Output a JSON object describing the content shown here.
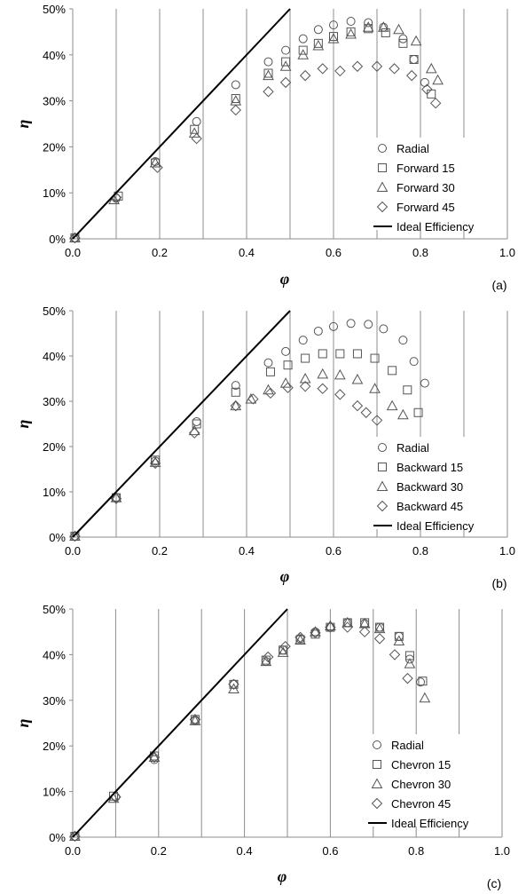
{
  "chart_data": [
    {
      "type": "scatter",
      "panel_label": "(a)",
      "xlabel": "φ",
      "ylabel": "η",
      "xlim": [
        0,
        1.0
      ],
      "ylim": [
        0,
        0.5
      ],
      "x_ticks": [
        "0.0",
        "0.2",
        "0.4",
        "0.6",
        "0.8",
        "1.0"
      ],
      "y_ticks": [
        "0%",
        "10%",
        "20%",
        "30%",
        "40%",
        "50%"
      ],
      "grid": "vertical every 0.1",
      "legend_position": "bottom-right",
      "series": [
        {
          "name": "Radial",
          "marker": "circle",
          "x": [
            0.005,
            0.1,
            0.19,
            0.285,
            0.375,
            0.45,
            0.49,
            0.53,
            0.565,
            0.6,
            0.64,
            0.68,
            0.715,
            0.76,
            0.785,
            0.81
          ],
          "y": [
            0.002,
            0.088,
            0.168,
            0.255,
            0.335,
            0.385,
            0.41,
            0.435,
            0.455,
            0.465,
            0.473,
            0.47,
            0.46,
            0.435,
            0.39,
            0.34
          ]
        },
        {
          "name": "Forward 15",
          "marker": "square",
          "x": [
            0.005,
            0.105,
            0.19,
            0.28,
            0.375,
            0.45,
            0.49,
            0.53,
            0.565,
            0.6,
            0.64,
            0.68,
            0.72,
            0.76,
            0.785,
            0.825
          ],
          "y": [
            0.002,
            0.093,
            0.165,
            0.238,
            0.305,
            0.36,
            0.385,
            0.41,
            0.425,
            0.44,
            0.45,
            0.457,
            0.448,
            0.425,
            0.39,
            0.315
          ]
        },
        {
          "name": "Forward 30",
          "marker": "triangle",
          "x": [
            0.005,
            0.095,
            0.19,
            0.28,
            0.375,
            0.45,
            0.49,
            0.53,
            0.565,
            0.6,
            0.64,
            0.68,
            0.715,
            0.75,
            0.79,
            0.825,
            0.84
          ],
          "y": [
            0.002,
            0.085,
            0.165,
            0.23,
            0.3,
            0.355,
            0.375,
            0.4,
            0.42,
            0.435,
            0.445,
            0.46,
            0.46,
            0.455,
            0.43,
            0.37,
            0.345
          ]
        },
        {
          "name": "Forward 45",
          "marker": "diamond",
          "x": [
            0.005,
            0.1,
            0.195,
            0.285,
            0.375,
            0.45,
            0.49,
            0.535,
            0.575,
            0.615,
            0.655,
            0.7,
            0.74,
            0.78,
            0.815,
            0.835
          ],
          "y": [
            0.002,
            0.09,
            0.155,
            0.218,
            0.28,
            0.32,
            0.34,
            0.355,
            0.37,
            0.365,
            0.375,
            0.375,
            0.37,
            0.355,
            0.325,
            0.295
          ]
        },
        {
          "name": "Ideal Efficiency",
          "marker": "line",
          "x": [
            0,
            0.5
          ],
          "y": [
            0,
            0.5
          ]
        }
      ]
    },
    {
      "type": "scatter",
      "panel_label": "(b)",
      "xlabel": "φ",
      "ylabel": "η",
      "xlim": [
        0,
        1.0
      ],
      "ylim": [
        0,
        0.5
      ],
      "x_ticks": [
        "0.0",
        "0.2",
        "0.4",
        "0.6",
        "0.8",
        "1.0"
      ],
      "y_ticks": [
        "0%",
        "10%",
        "20%",
        "30%",
        "40%",
        "50%"
      ],
      "grid": "vertical every 0.1",
      "legend_position": "bottom-right",
      "series": [
        {
          "name": "Radial",
          "marker": "circle",
          "x": [
            0.005,
            0.1,
            0.19,
            0.285,
            0.375,
            0.45,
            0.49,
            0.53,
            0.565,
            0.6,
            0.64,
            0.68,
            0.715,
            0.76,
            0.785,
            0.81
          ],
          "y": [
            0.002,
            0.088,
            0.168,
            0.255,
            0.335,
            0.385,
            0.41,
            0.435,
            0.455,
            0.465,
            0.472,
            0.47,
            0.46,
            0.435,
            0.388,
            0.34
          ]
        },
        {
          "name": "Backward 15",
          "marker": "square",
          "x": [
            0.005,
            0.1,
            0.19,
            0.285,
            0.375,
            0.455,
            0.495,
            0.535,
            0.575,
            0.615,
            0.655,
            0.695,
            0.735,
            0.77,
            0.795
          ],
          "y": [
            0.002,
            0.087,
            0.17,
            0.25,
            0.32,
            0.365,
            0.38,
            0.395,
            0.405,
            0.405,
            0.405,
            0.395,
            0.368,
            0.325,
            0.275
          ]
        },
        {
          "name": "Backward 30",
          "marker": "triangle",
          "x": [
            0.005,
            0.1,
            0.19,
            0.28,
            0.375,
            0.41,
            0.45,
            0.49,
            0.535,
            0.575,
            0.615,
            0.655,
            0.695,
            0.735,
            0.76
          ],
          "y": [
            0.002,
            0.087,
            0.165,
            0.235,
            0.29,
            0.305,
            0.325,
            0.34,
            0.35,
            0.36,
            0.358,
            0.348,
            0.328,
            0.29,
            0.27
          ]
        },
        {
          "name": "Backward 45",
          "marker": "diamond",
          "x": [
            0.005,
            0.1,
            0.19,
            0.28,
            0.375,
            0.415,
            0.455,
            0.495,
            0.535,
            0.575,
            0.615,
            0.655,
            0.675,
            0.7
          ],
          "y": [
            0.002,
            0.085,
            0.163,
            0.23,
            0.29,
            0.305,
            0.318,
            0.33,
            0.333,
            0.328,
            0.315,
            0.29,
            0.275,
            0.258
          ]
        },
        {
          "name": "Ideal Efficiency",
          "marker": "line",
          "x": [
            0,
            0.5
          ],
          "y": [
            0,
            0.5
          ]
        }
      ]
    },
    {
      "type": "scatter",
      "panel_label": "(c)",
      "xlabel": "φ",
      "ylabel": "η",
      "xlim": [
        0,
        1.0
      ],
      "ylim": [
        0,
        0.5
      ],
      "x_ticks": [
        "0.0",
        "0.2",
        "0.4",
        "0.6",
        "0.8",
        "1.0"
      ],
      "y_ticks": [
        "0%",
        "10%",
        "20%",
        "30%",
        "40%",
        "50%"
      ],
      "grid": "vertical every 0.1",
      "legend_position": "bottom-right",
      "series": [
        {
          "name": "Radial",
          "marker": "circle",
          "x": [
            0.005,
            0.1,
            0.19,
            0.285,
            0.375,
            0.45,
            0.49,
            0.53,
            0.565,
            0.6,
            0.64,
            0.68,
            0.715,
            0.76,
            0.785,
            0.81
          ],
          "y": [
            0.002,
            0.088,
            0.17,
            0.255,
            0.335,
            0.385,
            0.41,
            0.435,
            0.45,
            0.46,
            0.47,
            0.468,
            0.46,
            0.44,
            0.39,
            0.34
          ]
        },
        {
          "name": "Chevron 15",
          "marker": "square",
          "x": [
            0.005,
            0.095,
            0.19,
            0.285,
            0.375,
            0.45,
            0.49,
            0.53,
            0.565,
            0.6,
            0.64,
            0.68,
            0.715,
            0.76,
            0.785,
            0.815
          ],
          "y": [
            0.002,
            0.09,
            0.178,
            0.258,
            0.335,
            0.388,
            0.41,
            0.433,
            0.445,
            0.46,
            0.47,
            0.47,
            0.46,
            0.44,
            0.398,
            0.342
          ]
        },
        {
          "name": "Chevron 30",
          "marker": "triangle",
          "x": [
            0.005,
            0.095,
            0.19,
            0.285,
            0.375,
            0.45,
            0.49,
            0.53,
            0.565,
            0.6,
            0.64,
            0.68,
            0.715,
            0.76,
            0.785,
            0.82
          ],
          "y": [
            0.002,
            0.085,
            0.175,
            0.255,
            0.325,
            0.385,
            0.405,
            0.432,
            0.45,
            0.463,
            0.47,
            0.468,
            0.457,
            0.43,
            0.38,
            0.305
          ]
        },
        {
          "name": "Chevron 45",
          "marker": "diamond",
          "x": [
            0.005,
            0.1,
            0.19,
            0.285,
            0.375,
            0.455,
            0.495,
            0.53,
            0.565,
            0.6,
            0.64,
            0.68,
            0.715,
            0.75,
            0.78
          ],
          "y": [
            0.002,
            0.088,
            0.175,
            0.258,
            0.335,
            0.395,
            0.418,
            0.438,
            0.448,
            0.46,
            0.46,
            0.45,
            0.435,
            0.4,
            0.348
          ]
        },
        {
          "name": "Ideal Efficiency",
          "marker": "line",
          "x": [
            0,
            0.5
          ],
          "y": [
            0,
            0.5
          ]
        }
      ]
    }
  ]
}
